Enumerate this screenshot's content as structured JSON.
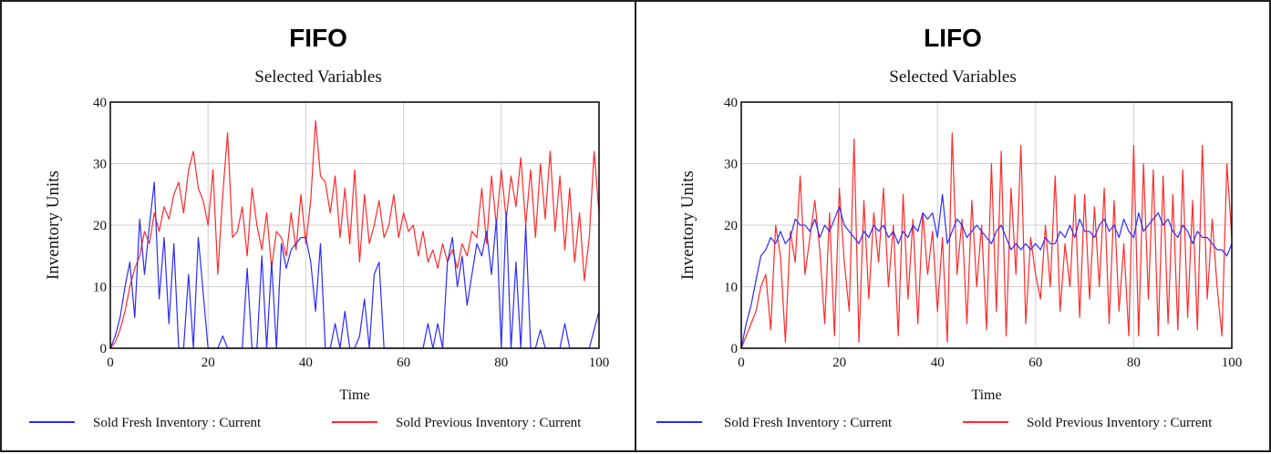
{
  "chart_data": [
    {
      "type": "line",
      "panel_title": "FIFO",
      "title": "Selected Variables",
      "xlabel": "Time",
      "ylabel": "Inventory Units",
      "xlim": [
        0,
        100
      ],
      "ylim": [
        0,
        40
      ],
      "xticks": [
        0,
        20,
        40,
        60,
        80,
        100
      ],
      "yticks": [
        0,
        10,
        20,
        30,
        40
      ],
      "grid": true,
      "legend_position": "bottom",
      "series": [
        {
          "name": "Sold Fresh Inventory : Current",
          "color": "#2b2bff",
          "x": [
            0,
            1,
            2,
            3,
            4,
            5,
            6,
            7,
            8,
            9,
            10,
            11,
            12,
            13,
            14,
            15,
            16,
            17,
            18,
            20,
            22,
            23,
            24,
            25,
            26,
            27,
            28,
            29,
            30,
            31,
            32,
            33,
            34,
            35,
            36,
            37,
            38,
            39,
            40,
            41,
            42,
            43,
            44,
            45,
            46,
            47,
            48,
            49,
            50,
            51,
            52,
            53,
            54,
            55,
            56,
            58,
            60,
            62,
            63,
            64,
            65,
            66,
            67,
            68,
            69,
            70,
            71,
            72,
            73,
            74,
            75,
            76,
            77,
            78,
            79,
            80,
            81,
            82,
            83,
            84,
            85,
            86,
            87,
            88,
            89,
            90,
            91,
            92,
            93,
            94,
            95,
            96,
            97,
            98,
            99,
            100
          ],
          "y": [
            0,
            2,
            5,
            10,
            14,
            5,
            21,
            12,
            20,
            27,
            8,
            18,
            4,
            17,
            0,
            0,
            12,
            0,
            18,
            0,
            0,
            2,
            0,
            0,
            0,
            0,
            13,
            0,
            0,
            15,
            0,
            14,
            0,
            17,
            13,
            16,
            17,
            18,
            18,
            14,
            6,
            17,
            0,
            0,
            4,
            0,
            6,
            0,
            0,
            2,
            8,
            0,
            12,
            14,
            0,
            0,
            0,
            0,
            0,
            0,
            4,
            0,
            4,
            0,
            14,
            18,
            10,
            15,
            7,
            12,
            17,
            15,
            19,
            12,
            21,
            0,
            22,
            0,
            14,
            0,
            20,
            0,
            0,
            3,
            0,
            0,
            0,
            0,
            4,
            0,
            0,
            0,
            0,
            0,
            3,
            6
          ]
        },
        {
          "name": "Sold Previous Inventory : Current",
          "color": "#ff2a2a",
          "x": [
            0,
            1,
            2,
            3,
            4,
            5,
            6,
            7,
            8,
            9,
            10,
            11,
            12,
            13,
            14,
            15,
            16,
            17,
            18,
            19,
            20,
            21,
            22,
            23,
            24,
            25,
            26,
            27,
            28,
            29,
            30,
            31,
            32,
            33,
            34,
            35,
            36,
            37,
            38,
            39,
            40,
            41,
            42,
            43,
            44,
            45,
            46,
            47,
            48,
            49,
            50,
            51,
            52,
            53,
            54,
            55,
            56,
            57,
            58,
            59,
            60,
            61,
            62,
            63,
            64,
            65,
            66,
            67,
            68,
            69,
            70,
            71,
            72,
            73,
            74,
            75,
            76,
            77,
            78,
            79,
            80,
            81,
            82,
            83,
            84,
            85,
            86,
            87,
            88,
            89,
            90,
            91,
            92,
            93,
            94,
            95,
            96,
            97,
            98,
            99,
            100
          ],
          "y": [
            0,
            1,
            3,
            6,
            10,
            13,
            15,
            19,
            17,
            22,
            19,
            23,
            21,
            25,
            27,
            22,
            29,
            32,
            26,
            24,
            20,
            29,
            12,
            25,
            35,
            18,
            19,
            23,
            15,
            26,
            20,
            16,
            22,
            13,
            19,
            18,
            15,
            22,
            16,
            25,
            17,
            24,
            37,
            28,
            27,
            22,
            28,
            18,
            26,
            17,
            29,
            14,
            25,
            17,
            20,
            24,
            18,
            20,
            25,
            18,
            22,
            19,
            20,
            15,
            19,
            14,
            16,
            13,
            17,
            14,
            16,
            13,
            17,
            15,
            19,
            18,
            26,
            17,
            28,
            20,
            29,
            21,
            28,
            23,
            31,
            20,
            29,
            18,
            30,
            21,
            32,
            19,
            28,
            16,
            26,
            14,
            22,
            11,
            18,
            32,
            22
          ]
        }
      ]
    },
    {
      "type": "line",
      "panel_title": "LIFO",
      "title": "Selected Variables",
      "xlabel": "Time",
      "ylabel": "Inventory Units",
      "xlim": [
        0,
        100
      ],
      "ylim": [
        0,
        40
      ],
      "xticks": [
        0,
        20,
        40,
        60,
        80,
        100
      ],
      "yticks": [
        0,
        10,
        20,
        30,
        40
      ],
      "grid": true,
      "legend_position": "bottom",
      "series": [
        {
          "name": "Sold Fresh Inventory : Current",
          "color": "#2b2bff",
          "x": [
            0,
            1,
            2,
            3,
            4,
            5,
            6,
            7,
            8,
            9,
            10,
            11,
            12,
            13,
            14,
            15,
            16,
            17,
            18,
            19,
            20,
            21,
            22,
            23,
            24,
            25,
            26,
            27,
            28,
            29,
            30,
            31,
            32,
            33,
            34,
            35,
            36,
            37,
            38,
            39,
            40,
            41,
            42,
            43,
            44,
            45,
            46,
            47,
            48,
            49,
            50,
            51,
            52,
            53,
            54,
            55,
            56,
            57,
            58,
            59,
            60,
            61,
            62,
            63,
            64,
            65,
            66,
            67,
            68,
            69,
            70,
            71,
            72,
            73,
            74,
            75,
            76,
            77,
            78,
            79,
            80,
            81,
            82,
            83,
            84,
            85,
            86,
            87,
            88,
            89,
            90,
            91,
            92,
            93,
            94,
            95,
            96,
            97,
            98,
            99,
            100
          ],
          "y": [
            0,
            4,
            7,
            11,
            15,
            16,
            18,
            17,
            19,
            17,
            18,
            21,
            20,
            20,
            19,
            21,
            18,
            20,
            19,
            21,
            23,
            20,
            19,
            18,
            17,
            19,
            18,
            20,
            19,
            20,
            18,
            19,
            17,
            19,
            18,
            20,
            19,
            22,
            21,
            22,
            18,
            25,
            17,
            19,
            21,
            20,
            18,
            19,
            20,
            19,
            18,
            17,
            19,
            20,
            18,
            16,
            17,
            16,
            17,
            16,
            17,
            16,
            18,
            17,
            17,
            19,
            18,
            20,
            18,
            21,
            19,
            19,
            18,
            20,
            21,
            19,
            20,
            18,
            21,
            19,
            18,
            22,
            19,
            20,
            21,
            22,
            20,
            21,
            19,
            18,
            20,
            19,
            17,
            19,
            18,
            18,
            17,
            16,
            16,
            15,
            17
          ]
        },
        {
          "name": "Sold Previous Inventory : Current",
          "color": "#ff2a2a",
          "x": [
            0,
            1,
            2,
            3,
            4,
            5,
            6,
            7,
            8,
            9,
            10,
            11,
            12,
            13,
            14,
            15,
            16,
            17,
            18,
            19,
            20,
            21,
            22,
            23,
            24,
            25,
            26,
            27,
            28,
            29,
            30,
            31,
            32,
            33,
            34,
            35,
            36,
            37,
            38,
            39,
            40,
            41,
            42,
            43,
            44,
            45,
            46,
            47,
            48,
            49,
            50,
            51,
            52,
            53,
            54,
            55,
            56,
            57,
            58,
            59,
            60,
            61,
            62,
            63,
            64,
            65,
            66,
            67,
            68,
            69,
            70,
            71,
            72,
            73,
            74,
            75,
            76,
            77,
            78,
            79,
            80,
            81,
            82,
            83,
            84,
            85,
            86,
            87,
            88,
            89,
            90,
            91,
            92,
            93,
            94,
            95,
            96,
            97,
            98,
            99,
            100
          ],
          "y": [
            0,
            2,
            4,
            6,
            10,
            12,
            3,
            20,
            15,
            1,
            19,
            14,
            28,
            12,
            18,
            24,
            16,
            4,
            22,
            2,
            26,
            14,
            6,
            34,
            1,
            24,
            8,
            22,
            14,
            26,
            10,
            20,
            2,
            25,
            8,
            21,
            4,
            22,
            12,
            19,
            6,
            18,
            1,
            35,
            12,
            21,
            4,
            24,
            10,
            20,
            3,
            30,
            6,
            32,
            2,
            26,
            12,
            33,
            4,
            18,
            12,
            8,
            20,
            10,
            28,
            6,
            17,
            10,
            25,
            5,
            25,
            8,
            23,
            10,
            26,
            4,
            24,
            6,
            17,
            2,
            33,
            2,
            30,
            8,
            29,
            2,
            28,
            4,
            25,
            3,
            29,
            5,
            24,
            3,
            33,
            8,
            21,
            10,
            2,
            30,
            18
          ]
        }
      ]
    }
  ]
}
